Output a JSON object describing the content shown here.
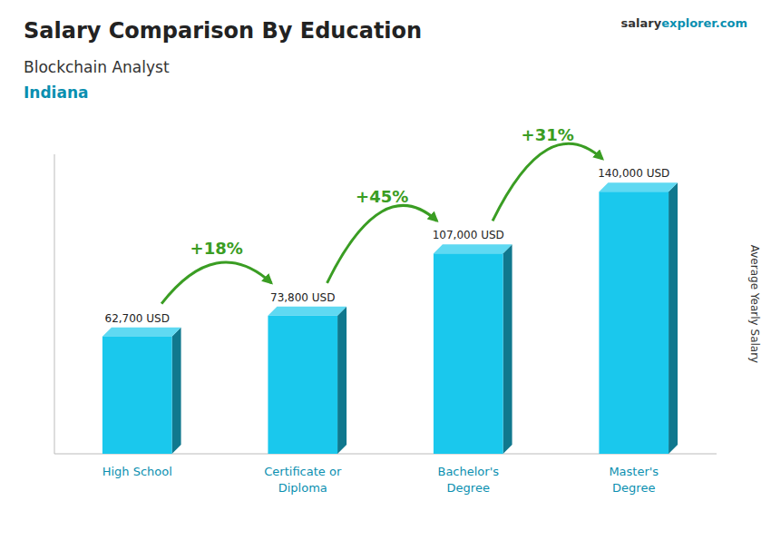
{
  "chart_data": {
    "type": "bar",
    "title": "Salary Comparison By Education",
    "subtitle": "Blockchain Analyst",
    "location": "Indiana",
    "watermark": [
      "salary",
      "explorer.com"
    ],
    "y_label": "Average Yearly Salary",
    "categories": [
      "High School",
      "Certificate or\nDiploma",
      "Bachelor's\nDegree",
      "Master's\nDegree"
    ],
    "values": [
      62700,
      73800,
      107000,
      140000
    ],
    "value_labels": [
      "62,700 USD",
      "73,800 USD",
      "107,000 USD",
      "140,000 USD"
    ],
    "data_labels": true,
    "changes": [
      18,
      45,
      31
    ],
    "change_labels": [
      "+18%",
      "+45%",
      "+31%"
    ],
    "color": "#1ac8ed",
    "ylim": [
      0,
      160000
    ],
    "yticks": [],
    "tick_labels": "x",
    "grid": false
  }
}
